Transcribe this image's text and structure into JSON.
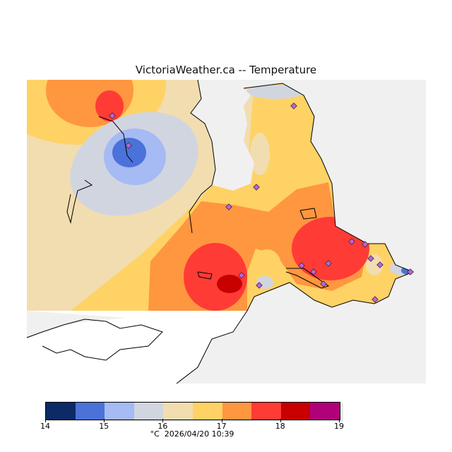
{
  "title": "VictoriaWeather.ca -- Temperature",
  "legend": {
    "colors": [
      "#0c2a66",
      "#4a72d9",
      "#a6baf3",
      "#d1d5e0",
      "#f2ddb0",
      "#ffd265",
      "#ff9640",
      "#ff3b35",
      "#c80000",
      "#b0007a"
    ],
    "ticks": [
      "14",
      "15",
      "16",
      "17",
      "18",
      "19"
    ],
    "unit": "°C",
    "timestamp": "2026/04/20 10:39"
  },
  "map": {
    "range_min": 14,
    "range_max": 19,
    "no_data_color": "#f0f0f0",
    "station_marker_color": "#c060e0"
  }
}
